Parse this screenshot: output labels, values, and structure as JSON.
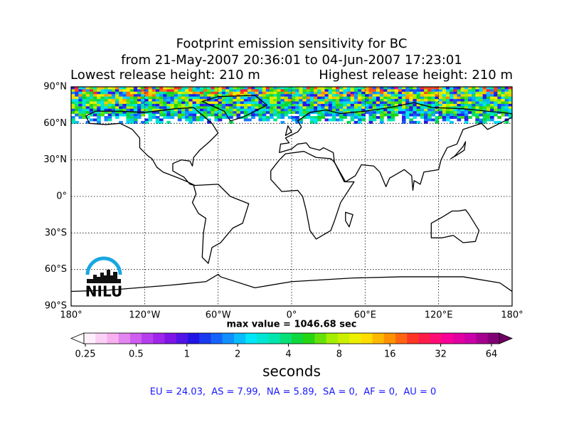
{
  "header": {
    "title_lines": [
      "Footprint emission sensitivity for BC",
      "from 21-May-2007 20:36:01 to 04-Jun-2007 17:23:01"
    ],
    "lowest_release": "Lowest release height: 210 m",
    "highest_release": "Highest release height: 210 m"
  },
  "map": {
    "lat_labels": [
      "90°N",
      "60°N",
      "30°N",
      "0°",
      "30°S",
      "60°S",
      "90°S"
    ],
    "lon_labels": [
      "180°",
      "120°W",
      "60°W",
      "0°",
      "60°E",
      "120°E",
      "180°"
    ],
    "logo": "NILU",
    "max_value": "max value = 1046.68 sec"
  },
  "colorbar": {
    "ticks": [
      0.25,
      0.5,
      1,
      2,
      4,
      8,
      16,
      32,
      64
    ],
    "label": "seconds"
  },
  "footer": "EU = 24.03,  AS = 7.99,  NA = 5.89,  SA = 0,  AF = 0,  AU = 0"
}
